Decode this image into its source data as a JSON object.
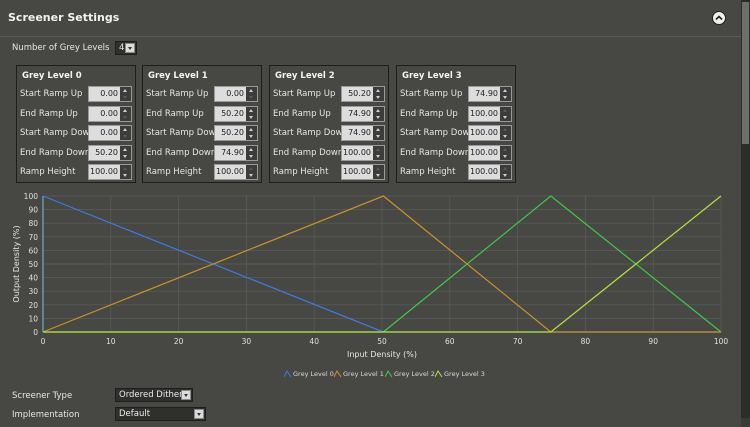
{
  "header": {
    "title": "Screener Settings"
  },
  "grey_levels_count": {
    "label": "Number of Grey Levels",
    "value": "4"
  },
  "row_labels": [
    "Start Ramp Up",
    "End Ramp Up",
    "Start Ramp Down",
    "End Ramp Down",
    "Ramp Height"
  ],
  "groups": [
    {
      "title": "Grey Level 0",
      "values": [
        "0.00",
        "0.00",
        "0.00",
        "50.20",
        "100.00"
      ]
    },
    {
      "title": "Grey Level 1",
      "values": [
        "0.00",
        "50.20",
        "50.20",
        "74.90",
        "100.00"
      ]
    },
    {
      "title": "Grey Level 2",
      "values": [
        "50.20",
        "74.90",
        "74.90",
        "100.00",
        "100.00"
      ]
    },
    {
      "title": "Grey Level 3",
      "values": [
        "74.90",
        "100.00",
        "100.00",
        "100.00",
        "100.00"
      ]
    }
  ],
  "colors": {
    "series": [
      "#3d7be0",
      "#c9922a",
      "#3ec94a",
      "#b4e041"
    ],
    "grid": "#5c5c59",
    "axis": "#7ec0e0"
  },
  "chart_data": {
    "type": "line",
    "xlabel": "Input Density (%)",
    "ylabel": "Output Density (%)",
    "xlim": [
      0,
      100
    ],
    "ylim": [
      0,
      100
    ],
    "x_ticks": [
      "0",
      "10",
      "20",
      "30",
      "40",
      "50",
      "60",
      "70",
      "80",
      "90",
      "100"
    ],
    "y_ticks": [
      "0",
      "10",
      "20",
      "30",
      "40",
      "50",
      "60",
      "70",
      "80",
      "90",
      "100"
    ],
    "grid": true,
    "legend": "bottom",
    "series": [
      {
        "name": "Grey Level 0",
        "points": [
          [
            0,
            100
          ],
          [
            50.2,
            0
          ],
          [
            100,
            0
          ]
        ]
      },
      {
        "name": "Grey Level 1",
        "points": [
          [
            0,
            0
          ],
          [
            50.2,
            100
          ],
          [
            74.9,
            0
          ],
          [
            100,
            0
          ]
        ]
      },
      {
        "name": "Grey Level 2",
        "points": [
          [
            0,
            0
          ],
          [
            50.2,
            0
          ],
          [
            74.9,
            100
          ],
          [
            100,
            0
          ]
        ]
      },
      {
        "name": "Grey Level 3",
        "points": [
          [
            0,
            0
          ],
          [
            74.9,
            0
          ],
          [
            100,
            100
          ]
        ]
      }
    ]
  },
  "screener_type": {
    "label": "Screener Type",
    "value": "Ordered Dither"
  },
  "implementation": {
    "label": "Implementation",
    "value": "Default"
  }
}
